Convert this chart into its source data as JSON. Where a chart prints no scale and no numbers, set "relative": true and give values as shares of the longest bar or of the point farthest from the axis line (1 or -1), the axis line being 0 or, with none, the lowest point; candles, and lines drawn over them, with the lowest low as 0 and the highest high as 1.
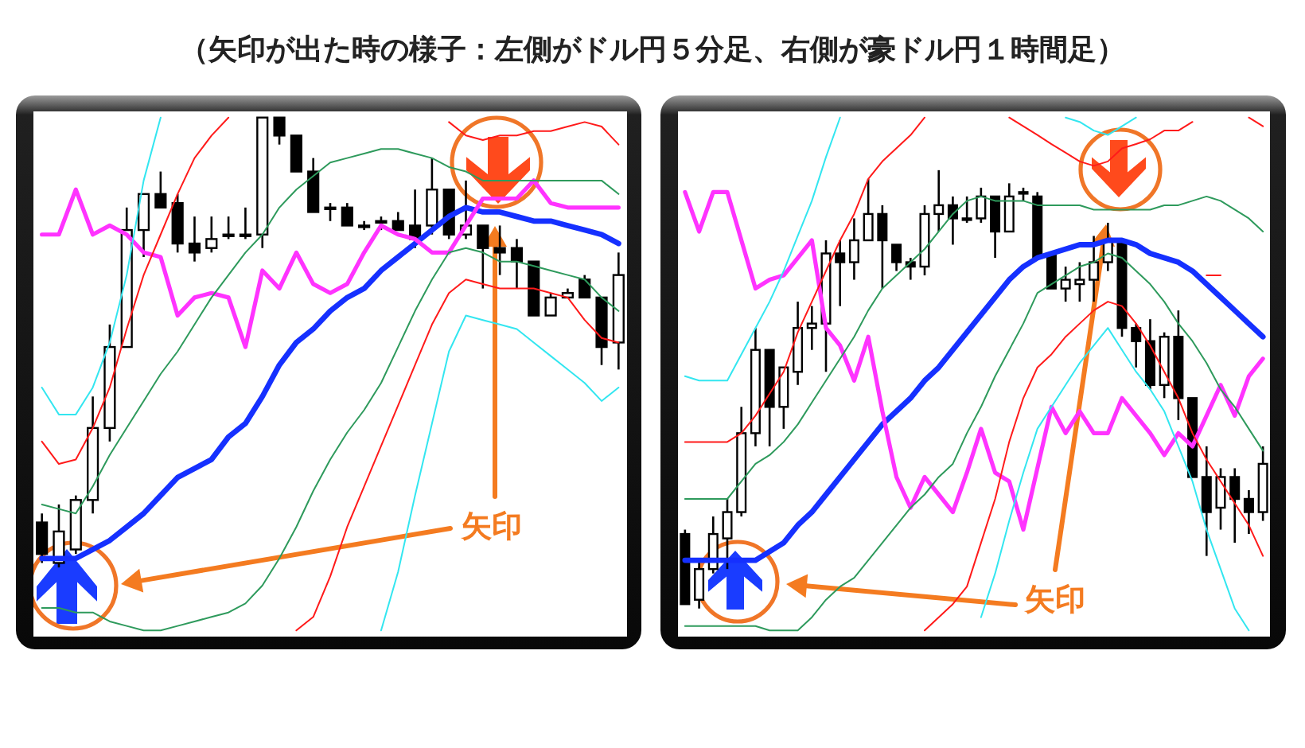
{
  "chart_data": [
    {
      "type": "candlestick",
      "relative": true,
      "title": "（矢印が出た時の様子：左側がドル円５分足、右側が豪ドル円１時間足）",
      "categories": [
        null,
        null,
        null,
        null,
        null,
        null,
        null,
        null,
        null,
        null,
        null,
        null,
        null,
        null,
        null,
        null,
        null,
        null,
        null,
        null,
        null,
        null,
        null,
        null,
        null,
        null,
        null,
        null,
        null,
        null,
        null,
        null,
        null,
        null,
        null
      ],
      "ohlc": [
        [
          0.1,
          0.12,
          0.01,
          0.03
        ],
        [
          0.01,
          0.14,
          0.0,
          0.08
        ],
        [
          0.04,
          0.16,
          0.03,
          0.15
        ],
        [
          0.15,
          0.38,
          0.12,
          0.31
        ],
        [
          0.31,
          0.54,
          0.28,
          0.49
        ],
        [
          0.49,
          0.8,
          0.49,
          0.75
        ],
        [
          0.75,
          0.83,
          0.69,
          0.83
        ],
        [
          0.83,
          0.88,
          0.8,
          0.8
        ],
        [
          0.81,
          0.83,
          0.7,
          0.72
        ],
        [
          0.72,
          0.78,
          0.68,
          0.7
        ],
        [
          0.71,
          0.78,
          0.7,
          0.73
        ],
        [
          0.74,
          0.78,
          0.73,
          0.74
        ],
        [
          0.74,
          0.8,
          0.73,
          0.74
        ],
        [
          0.74,
          1.0,
          0.71,
          1.0
        ],
        [
          1.0,
          1.0,
          0.94,
          0.96
        ],
        [
          0.96,
          0.96,
          0.88,
          0.88
        ],
        [
          0.88,
          0.91,
          0.79,
          0.79
        ],
        [
          0.8,
          0.81,
          0.77,
          0.8
        ],
        [
          0.8,
          0.81,
          0.76,
          0.76
        ],
        [
          0.76,
          0.77,
          0.75,
          0.76
        ],
        [
          0.77,
          0.78,
          0.75,
          0.77
        ],
        [
          0.77,
          0.79,
          0.75,
          0.75
        ],
        [
          0.76,
          0.84,
          0.71,
          0.73
        ],
        [
          0.76,
          0.91,
          0.74,
          0.84
        ],
        [
          0.84,
          0.84,
          0.73,
          0.74
        ],
        [
          0.74,
          0.86,
          0.73,
          0.76
        ],
        [
          0.76,
          0.76,
          0.62,
          0.71
        ],
        [
          0.71,
          0.76,
          0.65,
          0.7
        ],
        [
          0.71,
          0.73,
          0.62,
          0.68
        ],
        [
          0.68,
          0.68,
          0.56,
          0.56
        ],
        [
          0.56,
          0.61,
          0.56,
          0.6
        ],
        [
          0.6,
          0.62,
          0.6,
          0.61
        ],
        [
          0.64,
          0.65,
          0.6,
          0.6
        ],
        [
          0.6,
          0.6,
          0.45,
          0.49
        ],
        [
          0.5,
          0.7,
          0.44,
          0.65
        ]
      ],
      "series": [
        {
          "type": "line",
          "color": "#1530ff",
          "values": [
            0.02,
            0.02,
            0.02,
            0.04,
            0.06,
            0.09,
            0.12,
            0.16,
            0.2,
            0.22,
            0.24,
            0.29,
            0.32,
            0.38,
            0.45,
            0.5,
            0.53,
            0.57,
            0.6,
            0.62,
            0.66,
            0.69,
            0.72,
            0.75,
            0.78,
            0.8,
            0.79,
            0.79,
            0.78,
            0.77,
            0.77,
            0.76,
            0.75,
            0.74,
            0.72
          ]
        },
        {
          "type": "line",
          "color": "#ff33ff",
          "values": [
            0.74,
            0.74,
            0.84,
            0.74,
            0.76,
            0.74,
            0.7,
            0.69,
            0.56,
            0.6,
            0.61,
            0.6,
            0.49,
            0.66,
            0.62,
            0.7,
            0.63,
            0.61,
            0.63,
            0.7,
            0.76,
            0.74,
            0.73,
            0.7,
            0.7,
            0.76,
            0.82,
            0.82,
            0.82,
            0.86,
            0.81,
            0.8,
            0.8,
            0.8,
            0.8
          ]
        },
        {
          "type": "line",
          "color": "#2e9a5c",
          "values": [
            0.14,
            0.13,
            0.12,
            0.18,
            0.25,
            0.31,
            0.37,
            0.43,
            0.48,
            0.54,
            0.6,
            0.65,
            0.7,
            0.74,
            0.8,
            0.84,
            0.87,
            0.9,
            0.91,
            0.92,
            0.93,
            0.93,
            0.92,
            0.91,
            0.89,
            0.88,
            0.86,
            0.86,
            0.86,
            0.86,
            0.86,
            0.86,
            0.86,
            0.86,
            0.83
          ]
        },
        {
          "type": "line",
          "color": "#2e9a5c",
          "values": [
            -0.09,
            -0.09,
            -0.1,
            -0.1,
            -0.12,
            -0.13,
            -0.14,
            -0.14,
            -0.13,
            -0.12,
            -0.11,
            -0.1,
            -0.08,
            -0.04,
            0.02,
            0.09,
            0.17,
            0.24,
            0.3,
            0.35,
            0.41,
            0.49,
            0.57,
            0.64,
            0.7,
            0.71,
            0.7,
            0.68,
            0.68,
            0.67,
            0.66,
            0.65,
            0.64,
            0.6,
            0.57
          ]
        },
        {
          "type": "line",
          "color": "#ff1a1a",
          "values": [
            0.28,
            0.23,
            0.24,
            0.31,
            0.4,
            0.53,
            0.65,
            0.74,
            0.83,
            0.91,
            0.96,
            1.0,
            null,
            null,
            null,
            null,
            null,
            null,
            null,
            null,
            null,
            null,
            null,
            null,
            0.99,
            0.96,
            0.95,
            0.96,
            0.96,
            0.97,
            0.97,
            0.98,
            0.99,
            0.98,
            0.94
          ]
        },
        {
          "type": "line",
          "color": "#ff1a1a",
          "values": [
            null,
            null,
            null,
            null,
            null,
            null,
            null,
            null,
            null,
            null,
            null,
            null,
            null,
            null,
            null,
            -0.14,
            -0.11,
            -0.02,
            0.09,
            0.18,
            0.27,
            0.36,
            0.45,
            0.54,
            0.61,
            0.64,
            0.63,
            0.62,
            0.62,
            0.62,
            0.61,
            0.6,
            0.55,
            0.51,
            0.5
          ]
        },
        {
          "type": "line",
          "color": "#33e6f0",
          "values": [
            0.4,
            0.34,
            0.34,
            0.4,
            0.5,
            0.65,
            0.86,
            1.0,
            null,
            null,
            null,
            null,
            null,
            null,
            null,
            null,
            null,
            null,
            null,
            null,
            null,
            null,
            null,
            null,
            null,
            null,
            null,
            null,
            null,
            null,
            null,
            null,
            null,
            null,
            null
          ]
        },
        {
          "type": "line",
          "color": "#33e6f0",
          "values": [
            null,
            null,
            null,
            null,
            null,
            null,
            null,
            null,
            null,
            null,
            null,
            null,
            null,
            null,
            null,
            null,
            null,
            null,
            null,
            null,
            -0.14,
            -0.01,
            0.16,
            0.32,
            0.48,
            0.56,
            0.55,
            0.54,
            0.53,
            0.5,
            0.47,
            0.44,
            0.41,
            0.37,
            0.4
          ]
        }
      ],
      "annotations": [
        "矢印"
      ]
    },
    {
      "type": "candlestick",
      "relative": true,
      "categories": [
        null,
        null,
        null,
        null,
        null,
        null,
        null,
        null,
        null,
        null,
        null,
        null,
        null,
        null,
        null,
        null,
        null,
        null,
        null,
        null,
        null,
        null,
        null,
        null,
        null,
        null,
        null,
        null,
        null,
        null,
        null,
        null,
        null,
        null,
        null,
        null,
        null,
        null,
        null,
        null,
        null,
        null
      ],
      "ohlc": [
        [
          0.17,
          0.18,
          0.01,
          0.01
        ],
        [
          0.02,
          0.11,
          0.0,
          0.09
        ],
        [
          0.09,
          0.21,
          0.08,
          0.17
        ],
        [
          0.16,
          0.25,
          0.09,
          0.22
        ],
        [
          0.22,
          0.46,
          0.21,
          0.4
        ],
        [
          0.4,
          0.64,
          0.37,
          0.59
        ],
        [
          0.59,
          0.59,
          0.37,
          0.46
        ],
        [
          0.46,
          0.55,
          0.41,
          0.55
        ],
        [
          0.54,
          0.7,
          0.51,
          0.64
        ],
        [
          0.64,
          0.69,
          0.59,
          0.65
        ],
        [
          0.65,
          0.84,
          0.54,
          0.81
        ],
        [
          0.81,
          0.84,
          0.69,
          0.79
        ],
        [
          0.79,
          0.89,
          0.75,
          0.84
        ],
        [
          0.84,
          0.98,
          0.84,
          0.9
        ],
        [
          0.9,
          0.92,
          0.73,
          0.84
        ],
        [
          0.83,
          0.83,
          0.77,
          0.79
        ],
        [
          0.79,
          0.8,
          0.75,
          0.78
        ],
        [
          0.78,
          0.92,
          0.76,
          0.9
        ],
        [
          0.9,
          1.0,
          0.86,
          0.92
        ],
        [
          0.92,
          0.94,
          0.83,
          0.89
        ],
        [
          0.89,
          0.94,
          0.88,
          0.89
        ],
        [
          0.89,
          0.96,
          0.88,
          0.94
        ],
        [
          0.94,
          0.94,
          0.8,
          0.86
        ],
        [
          0.86,
          0.97,
          0.86,
          0.94
        ],
        [
          0.95,
          0.96,
          0.93,
          0.95
        ],
        [
          0.94,
          0.95,
          0.8,
          0.8
        ],
        [
          0.81,
          0.81,
          0.73,
          0.73
        ],
        [
          0.73,
          0.78,
          0.7,
          0.75
        ],
        [
          0.74,
          0.79,
          0.7,
          0.75
        ],
        [
          0.75,
          0.85,
          0.7,
          0.79
        ],
        [
          0.79,
          0.88,
          0.77,
          0.84
        ],
        [
          0.84,
          0.84,
          0.62,
          0.64
        ],
        [
          0.64,
          0.65,
          0.55,
          0.61
        ],
        [
          0.61,
          0.66,
          0.5,
          0.51
        ],
        [
          0.51,
          0.63,
          0.48,
          0.62
        ],
        [
          0.62,
          0.68,
          0.43,
          0.48
        ],
        [
          0.48,
          0.48,
          0.3,
          0.3
        ],
        [
          0.3,
          0.37,
          0.12,
          0.22
        ],
        [
          0.23,
          0.32,
          0.18,
          0.3
        ],
        [
          0.3,
          0.32,
          0.15,
          0.25
        ],
        [
          0.25,
          0.27,
          0.17,
          0.22
        ],
        [
          0.22,
          0.37,
          0.2,
          0.33
        ]
      ],
      "series": [
        {
          "type": "line",
          "color": "#1530ff",
          "values": [
            0.11,
            0.11,
            0.11,
            0.11,
            0.11,
            0.11,
            0.13,
            0.15,
            0.19,
            0.22,
            0.26,
            0.3,
            0.34,
            0.38,
            0.42,
            0.45,
            0.48,
            0.52,
            0.55,
            0.59,
            0.63,
            0.67,
            0.71,
            0.75,
            0.78,
            0.8,
            0.81,
            0.82,
            0.83,
            0.83,
            0.84,
            0.84,
            0.83,
            0.81,
            0.8,
            0.79,
            0.77,
            0.74,
            0.71,
            0.68,
            0.65,
            0.62
          ]
        },
        {
          "type": "line",
          "color": "#ff33ff",
          "values": [
            0.95,
            0.86,
            0.95,
            0.95,
            0.84,
            0.73,
            0.75,
            0.76,
            0.8,
            0.84,
            0.64,
            0.6,
            0.52,
            0.62,
            0.45,
            0.3,
            0.23,
            0.3,
            0.26,
            0.22,
            0.31,
            0.41,
            0.31,
            0.29,
            0.18,
            0.32,
            0.46,
            0.4,
            0.45,
            0.4,
            0.4,
            0.48,
            0.44,
            0.4,
            0.35,
            0.4,
            0.37,
            0.44,
            0.51,
            0.44,
            0.53,
            0.57
          ]
        },
        {
          "type": "line",
          "color": "#2e9a5c",
          "values": [
            0.25,
            0.25,
            0.25,
            0.25,
            0.29,
            0.33,
            0.35,
            0.38,
            0.42,
            0.47,
            0.52,
            0.57,
            0.62,
            0.68,
            0.73,
            0.76,
            0.79,
            0.82,
            0.86,
            0.9,
            0.93,
            0.94,
            0.93,
            0.93,
            0.93,
            0.92,
            0.92,
            0.92,
            0.92,
            0.91,
            0.91,
            0.91,
            0.91,
            0.91,
            0.92,
            0.92,
            0.93,
            0.94,
            0.93,
            0.91,
            0.89,
            0.86
          ]
        },
        {
          "type": "line",
          "color": "#2e9a5c",
          "values": [
            -0.04,
            -0.04,
            -0.04,
            -0.04,
            -0.04,
            -0.04,
            -0.05,
            -0.05,
            -0.05,
            -0.02,
            0.02,
            0.05,
            0.07,
            0.11,
            0.15,
            0.19,
            0.23,
            0.26,
            0.3,
            0.33,
            0.4,
            0.46,
            0.53,
            0.59,
            0.65,
            0.72,
            0.74,
            0.76,
            0.78,
            0.79,
            0.81,
            0.8,
            0.77,
            0.74,
            0.7,
            0.65,
            0.61,
            0.56,
            0.5,
            0.46,
            0.41,
            0.36
          ]
        },
        {
          "type": "line",
          "color": "#ff1a1a",
          "values": [
            0.38,
            0.38,
            0.38,
            0.38,
            0.4,
            0.44,
            0.49,
            0.54,
            0.63,
            0.7,
            0.77,
            0.84,
            0.9,
            0.98,
            1.02,
            1.05,
            1.08,
            1.12,
            null,
            null,
            null,
            null,
            null,
            null,
            null,
            null,
            null,
            null,
            null,
            null,
            null,
            null,
            null,
            null,
            null,
            null,
            null,
            null,
            null,
            null,
            null,
            null
          ]
        },
        {
          "type": "line",
          "color": "#ff1a1a",
          "values": [
            null,
            null,
            null,
            null,
            null,
            null,
            null,
            null,
            null,
            null,
            null,
            null,
            null,
            null,
            null,
            null,
            null,
            -0.05,
            -0.02,
            0.01,
            0.05,
            0.15,
            0.25,
            0.38,
            0.48,
            0.55,
            0.58,
            0.62,
            0.65,
            0.68,
            0.7,
            0.69,
            0.65,
            0.6,
            0.54,
            0.48,
            0.4,
            0.34,
            0.29,
            0.24,
            0.19,
            0.12
          ]
        },
        {
          "type": "line",
          "color": "#33e6f0",
          "values": [
            0.53,
            0.52,
            0.52,
            0.52,
            0.58,
            0.64,
            0.7,
            0.77,
            0.85,
            0.93,
            1.03,
            1.12,
            null,
            null,
            null,
            null,
            null,
            null,
            null,
            null,
            null,
            null,
            null,
            null,
            null,
            null,
            null,
            null,
            null,
            null,
            null,
            null,
            null,
            null,
            null,
            null,
            null,
            null,
            null,
            null,
            null,
            null
          ]
        },
        {
          "type": "line",
          "color": "#33e6f0",
          "values": [
            null,
            null,
            null,
            null,
            null,
            null,
            null,
            null,
            null,
            null,
            null,
            null,
            null,
            null,
            null,
            null,
            null,
            null,
            null,
            null,
            null,
            -0.02,
            0.08,
            0.2,
            0.31,
            0.41,
            0.46,
            0.51,
            0.56,
            0.6,
            0.64,
            0.59,
            0.54,
            0.5,
            0.45,
            0.37,
            0.29,
            0.18,
            0.09,
            0.0,
            -0.05,
            null
          ]
        },
        {
          "type": "line",
          "color": "#ff1a1a",
          "values": [
            null,
            null,
            null,
            null,
            null,
            null,
            null,
            null,
            null,
            null,
            null,
            null,
            null,
            null,
            null,
            null,
            null,
            null,
            null,
            null,
            null,
            null,
            null,
            null,
            null,
            null,
            null,
            null,
            null,
            null,
            null,
            null,
            null,
            null,
            null,
            null,
            null,
            0.76,
            0.76,
            null,
            null,
            null
          ]
        }
      ],
      "annotations": [
        "矢印"
      ]
    },
    {
      "type": "line",
      "relative": true,
      "categories": [
        null,
        null,
        null,
        null,
        null,
        null,
        null,
        null,
        null,
        null,
        null,
        null,
        null,
        null,
        null,
        null,
        null,
        null,
        null,
        null,
        null,
        null,
        null,
        null,
        null,
        null,
        null,
        null,
        null,
        null,
        null,
        null,
        null,
        null,
        null,
        null,
        null,
        null,
        null,
        null,
        null,
        null
      ],
      "series": [
        {
          "color": "#ff1a1a",
          "values": [
            null,
            null,
            null,
            null,
            null,
            null,
            null,
            null,
            null,
            null,
            null,
            null,
            null,
            null,
            null,
            null,
            null,
            null,
            null,
            null,
            null,
            null,
            null,
            1.0,
            0.82,
            0.64,
            0.45,
            0.27,
            0.09,
            0.0,
            0.09,
            0.36,
            0.45,
            0.55,
            0.73,
            0.73,
            0.91,
            null,
            null,
            null,
            1.0,
            0.82
          ]
        },
        {
          "color": "#33e6f0",
          "values": [
            null,
            null,
            null,
            null,
            null,
            null,
            null,
            null,
            null,
            null,
            null,
            null,
            null,
            null,
            null,
            null,
            null,
            null,
            null,
            null,
            null,
            null,
            null,
            null,
            null,
            null,
            null,
            1.0,
            0.91,
            0.73,
            0.64,
            0.82,
            1.0,
            null,
            null,
            null,
            null,
            null,
            null,
            null,
            null,
            null
          ]
        }
      ]
    }
  ]
}
